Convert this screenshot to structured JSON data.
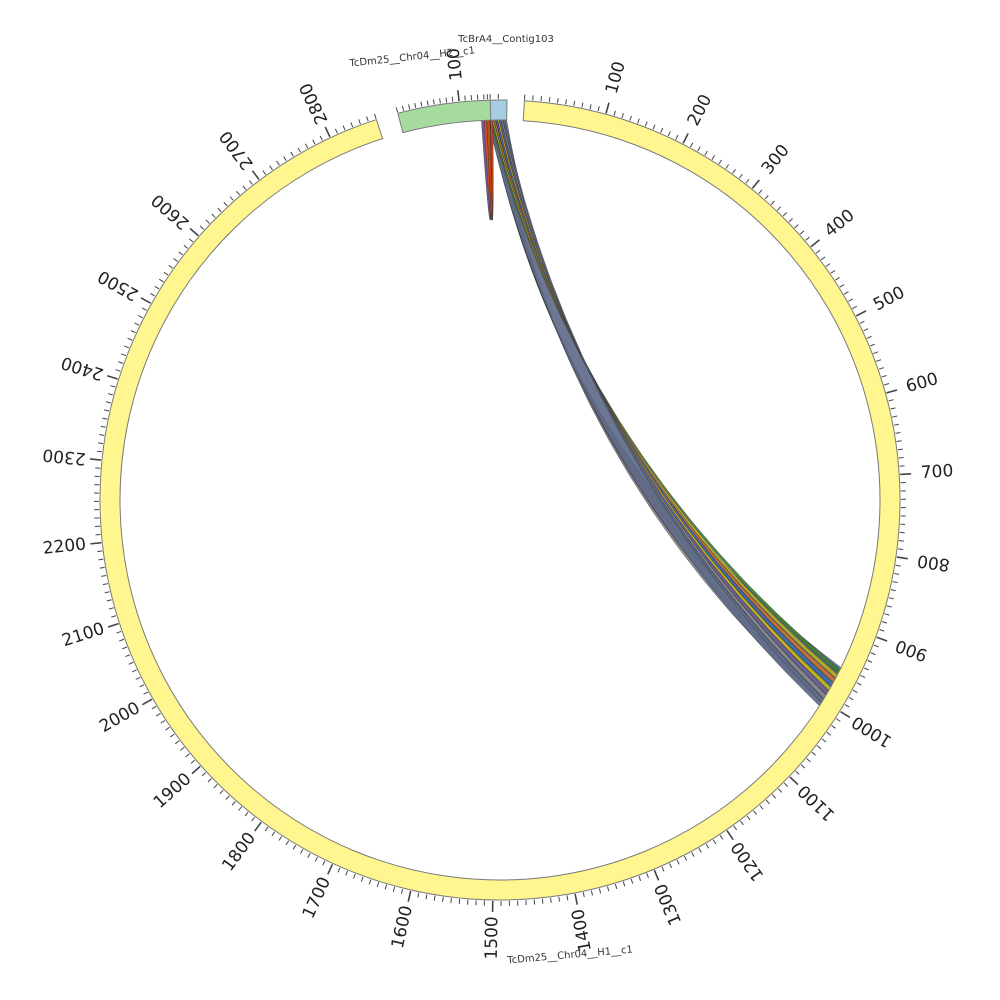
{
  "segments": [
    {
      "id": "contig",
      "label": "TcBrA4__Contig103",
      "color": "#a6cee3",
      "length": 18,
      "ticks": []
    },
    {
      "id": "h1",
      "label": "TcDm25__Chr04__H1__c1",
      "color": "#fff68f",
      "length": 2860,
      "ticks": [
        100,
        200,
        300,
        400,
        500,
        600,
        700,
        800,
        900,
        1000,
        1100,
        1200,
        1300,
        1400,
        1500,
        1600,
        1700,
        1800,
        1900,
        2000,
        2100,
        2200,
        2300,
        2400,
        2500,
        2600,
        2700,
        2800
      ]
    },
    {
      "id": "h2",
      "label": "TcDm25__Chr04__H2__c1",
      "color": "#a6dba0",
      "length": 150,
      "ticks": [
        100
      ]
    }
  ],
  "links": [
    {
      "color": "#5e6b8a"
    },
    {
      "color": "#3f7f2f"
    },
    {
      "color": "#b8b020"
    },
    {
      "color": "#d07030"
    },
    {
      "color": "#3a6fb0"
    },
    {
      "color": "#c9b418"
    },
    {
      "color": "#7060a0"
    },
    {
      "color": "#8a8a8a"
    },
    {
      "color": "#d9501c"
    },
    {
      "color": "#6a4a9a"
    },
    {
      "color": "#c84a18"
    }
  ]
}
